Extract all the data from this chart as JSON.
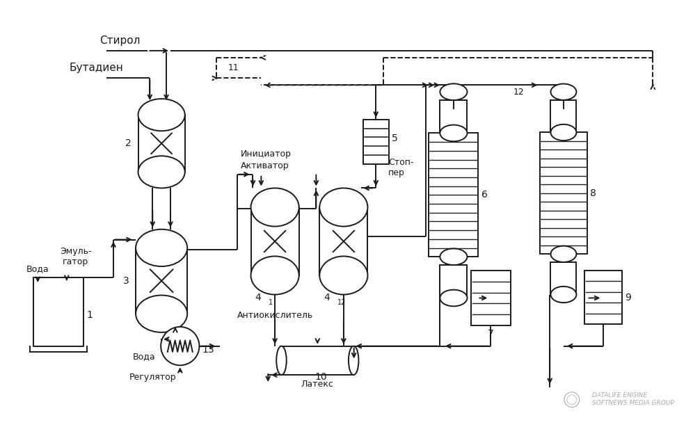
{
  "bg_color": "#ffffff",
  "line_color": "#1a1a1a",
  "lw": 1.4,
  "labels": {
    "styrene": "Стирол",
    "butadiene": "Бутадиен",
    "emulsifier": "Эмуль-\nгатор",
    "water1": "Вода",
    "water2": "Вода",
    "initiator": "Инициатор",
    "activator": "Активатор",
    "stopper": "Стоп-\nпер",
    "antioxidant": "Антиокислитель",
    "latex": "Латекс",
    "regulator": "Регулятор",
    "n1": "1",
    "n2": "2",
    "n3": "3",
    "n4a": "4",
    "n4b": "4",
    "s4a": "1",
    "s4b": "12",
    "n5": "5",
    "n6": "6",
    "n7": "7",
    "n8": "8",
    "n9": "9",
    "n10": "10",
    "n11": "11",
    "n12": "12",
    "n13": "13"
  },
  "wm1": "DATALIFE ENGINE",
  "wm2": "SOFTNEWS MEDIA GROUP"
}
